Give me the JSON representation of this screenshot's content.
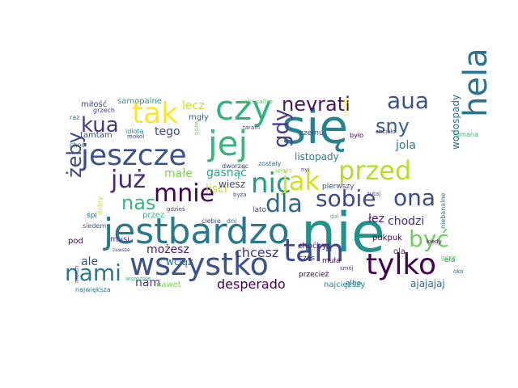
{
  "cloud": {
    "words": [
      {
        "text": "nie",
        "color": "#21918c"
      },
      {
        "text": "się",
        "color": "#26828e"
      },
      {
        "text": "jestbardzo",
        "color": "#2a788e"
      },
      {
        "text": "jej",
        "color": "#35b779"
      },
      {
        "text": "czy",
        "color": "#2fb47c"
      },
      {
        "text": "hela",
        "color": "#2c728e"
      },
      {
        "text": "wszystko",
        "color": "#3b528b"
      },
      {
        "text": "tam",
        "color": "#3e4a89"
      },
      {
        "text": "tylko",
        "color": "#440154"
      },
      {
        "text": "jeszcze",
        "color": "#3b528b"
      },
      {
        "text": "tak",
        "color": "#fde725"
      },
      {
        "text": "nic",
        "color": "#1f9e89"
      },
      {
        "text": "jak",
        "color": "#d2e21b"
      },
      {
        "text": "przed",
        "color": "#b5de2b"
      },
      {
        "text": "mnie",
        "color": "#440154"
      },
      {
        "text": "już",
        "color": "#482878"
      },
      {
        "text": "dla",
        "color": "#31688e"
      },
      {
        "text": "sobie",
        "color": "#3e4989"
      },
      {
        "text": "ona",
        "color": "#3e4989"
      },
      {
        "text": "być",
        "color": "#6ece58"
      },
      {
        "text": "nami",
        "color": "#2a788e"
      },
      {
        "text": "kua",
        "color": "#443983"
      },
      {
        "text": "gdy",
        "color": "#433e85"
      },
      {
        "text": "nevrati",
        "color": "#481467"
      },
      {
        "text": "aua",
        "color": "#3b528b"
      },
      {
        "text": "sny",
        "color": "#355f8d"
      },
      {
        "text": "nas",
        "color": "#35b779"
      },
      {
        "text": "żeby",
        "color": "#3e4989"
      },
      {
        "text": "desperado",
        "color": "#440154"
      },
      {
        "text": "chcesz",
        "color": "#46337e"
      },
      {
        "text": "chodzi",
        "color": "#472d7b"
      },
      {
        "text": "lecz",
        "color": "#c8e020"
      },
      {
        "text": "tego",
        "color": "#414487"
      },
      {
        "text": "małe",
        "color": "#7ad151"
      },
      {
        "text": "gasnąć",
        "color": "#22a884"
      },
      {
        "text": "lisci",
        "color": "#b5de2b"
      },
      {
        "text": "wodospady",
        "color": "#2c728e"
      },
      {
        "text": "jola",
        "color": "#2a788e"
      },
      {
        "text": "listopady",
        "color": "#277f8e"
      },
      {
        "text": "łez",
        "color": "#48186a"
      },
      {
        "text": "możesz",
        "color": "#481b6d"
      },
      {
        "text": "wciąż",
        "color": "#2d708e"
      },
      {
        "text": "nam",
        "color": "#443a83"
      },
      {
        "text": "ale",
        "color": "#3b528b"
      },
      {
        "text": "ajajajaj",
        "color": "#31688e"
      },
      {
        "text": "najcięższy",
        "color": "#26828e"
      },
      {
        "text": "nawet",
        "color": "#7ad151"
      },
      {
        "text": "pukpuk",
        "color": "#440154"
      },
      {
        "text": "wiesz",
        "color": "#3e4989"
      },
      {
        "text": "musi",
        "color": "#414487"
      },
      {
        "text": "miłość",
        "color": "#3e4989"
      },
      {
        "text": "samopalne",
        "color": "#1fa187"
      },
      {
        "text": "mgły",
        "color": "#31688e"
      },
      {
        "text": "tamtam",
        "color": "#3e4a89"
      },
      {
        "text": "grzech",
        "color": "#453781"
      },
      {
        "text": "raz",
        "color": "#2a788e"
      },
      {
        "text": "choć",
        "color": "#31688e"
      },
      {
        "text": "idiotą",
        "color": "#21918c"
      },
      {
        "text": "mokoi",
        "color": "#414487"
      },
      {
        "text": "seksualne",
        "color": "#5ec962"
      },
      {
        "text": "czemu",
        "color": "#3b528b"
      },
      {
        "text": "tumana",
        "color": "#38b977"
      },
      {
        "text": "chciało",
        "color": "#482878"
      },
      {
        "text": "było",
        "color": "#440154"
      },
      {
        "text": "taram",
        "color": "#443983"
      },
      {
        "text": "zostały",
        "color": "#2c728e"
      },
      {
        "text": "dworzec",
        "color": "#3e4989"
      },
      {
        "text": "pierwszy",
        "color": "#414487"
      },
      {
        "text": "choćbyś",
        "color": "#481f70"
      },
      {
        "text": "ola",
        "color": "#482878"
      },
      {
        "text": "czas",
        "color": "#46337e"
      },
      {
        "text": "muła",
        "color": "#440154"
      },
      {
        "text": "smój",
        "color": "#3e4a89"
      },
      {
        "text": "albo",
        "color": "#2c728e"
      },
      {
        "text": "przecież",
        "color": "#440154"
      },
      {
        "text": "kiedy",
        "color": "#440154"
      },
      {
        "text": "niebanalne",
        "color": "#2a788e"
      },
      {
        "text": "ela",
        "color": "#21918c"
      },
      {
        "text": "pod",
        "color": "#440154"
      },
      {
        "text": "śpi",
        "color": "#31688e"
      },
      {
        "text": "siedem",
        "color": "#3b528b"
      },
      {
        "text": "dobry",
        "color": "#c2df23"
      },
      {
        "text": "przez",
        "color": "#35b779"
      },
      {
        "text": "gdzieś",
        "color": "#414487"
      },
      {
        "text": "ciebie",
        "color": "#3e4989"
      },
      {
        "text": "dni",
        "color": "#31688e"
      },
      {
        "text": "lato",
        "color": "#3b528b"
      },
      {
        "text": "byża",
        "color": "#3e4989"
      },
      {
        "text": "dai",
        "color": "#44bf70"
      },
      {
        "text": "tutaj",
        "color": "#3e4a89"
      },
      {
        "text": "moich",
        "color": "#3e4989"
      },
      {
        "text": "największa",
        "color": "#2a788e"
      },
      {
        "text": "wszędzie",
        "color": "#38b977"
      },
      {
        "text": "spójrz",
        "color": "#95d840"
      },
      {
        "text": "nyi",
        "color": "#3b528b"
      },
      {
        "text": "boże",
        "color": "#6ece58"
      },
      {
        "text": "taraąb",
        "color": "#fde725"
      },
      {
        "text": "zawsze",
        "color": "#414487"
      },
      {
        "text": "gdzie",
        "color": "#5ec962"
      },
      {
        "text": "oko",
        "color": "#31688e"
      }
    ]
  }
}
